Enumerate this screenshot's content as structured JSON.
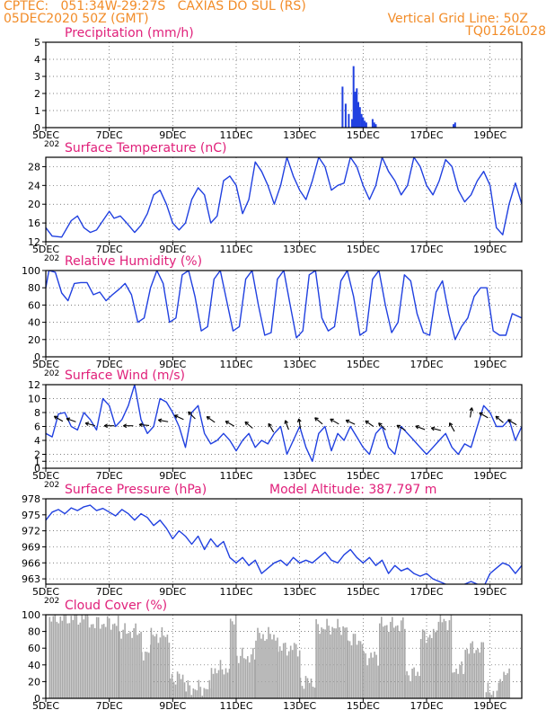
{
  "header": {
    "line1": "CPTEC:   051:34W-29:27S   CAXIAS DO SUL (RS)",
    "line2": "05DEC2020 50Z (GMT)",
    "grid_note": "Vertical Grid Line: 50Z",
    "code": "TQ0126L028"
  },
  "colors": {
    "header": "#f28c28",
    "title": "#e0207a",
    "series": "#2040e0",
    "bars": "#a8a8a8",
    "arrows": "#000000"
  },
  "x_ticks": [
    "5DEC",
    "7DEC",
    "9DEC",
    "11DEC",
    "13DEC",
    "15DEC",
    "17DEC",
    "19DEC"
  ],
  "x_tick_days": [
    5,
    7,
    9,
    11,
    13,
    15,
    17,
    19
  ],
  "x_range": [
    5,
    20
  ],
  "cut_label": "202",
  "chart_data": [
    {
      "type": "bar",
      "title": "Precipitation (mm/h)",
      "ylim": [
        0,
        5
      ],
      "yticks": [
        0,
        1,
        2,
        3,
        4,
        5
      ],
      "x": [
        14.35,
        14.45,
        14.55,
        14.65,
        14.7,
        14.75,
        14.8,
        14.85,
        14.9,
        14.95,
        15.0,
        15.05,
        15.1,
        15.3,
        15.35,
        15.4,
        17.85,
        17.9
      ],
      "values": [
        2.4,
        1.4,
        0.8,
        0.5,
        3.6,
        2.1,
        2.3,
        1.5,
        1.2,
        0.8,
        0.6,
        0.4,
        0.3,
        0.5,
        0.3,
        0.2,
        0.2,
        0.3
      ]
    },
    {
      "type": "line",
      "title": "Surface Temperature (nC)",
      "ylim": [
        12,
        30
      ],
      "yticks": [
        12,
        16,
        20,
        24,
        28
      ],
      "x": [
        5,
        5.2,
        5.5,
        5.8,
        6.0,
        6.2,
        6.4,
        6.6,
        6.8,
        7.0,
        7.15,
        7.35,
        7.55,
        7.8,
        8.0,
        8.2,
        8.4,
        8.6,
        8.8,
        9.0,
        9.2,
        9.4,
        9.6,
        9.8,
        10.0,
        10.2,
        10.4,
        10.6,
        10.8,
        11.0,
        11.2,
        11.4,
        11.6,
        11.8,
        12.0,
        12.2,
        12.4,
        12.6,
        12.8,
        13.0,
        13.2,
        13.4,
        13.6,
        13.8,
        14.0,
        14.2,
        14.4,
        14.6,
        14.8,
        15.0,
        15.2,
        15.4,
        15.6,
        15.8,
        16.0,
        16.2,
        16.4,
        16.6,
        16.8,
        17.0,
        17.2,
        17.4,
        17.6,
        17.8,
        18.0,
        18.2,
        18.4,
        18.6,
        18.8,
        19.0,
        19.2,
        19.4,
        19.6,
        19.8,
        20.0
      ],
      "values": [
        15,
        13.2,
        13,
        16.5,
        17.5,
        15,
        14,
        14.5,
        16.5,
        18.5,
        17,
        17.5,
        16,
        14,
        15.5,
        18,
        22,
        23,
        20,
        16,
        14.5,
        16,
        21,
        23.5,
        22,
        16,
        17.5,
        25,
        26,
        24,
        18,
        21,
        29,
        27,
        24,
        20,
        24,
        30,
        26,
        23,
        21,
        25,
        30,
        28,
        23,
        24,
        24.5,
        30,
        28,
        24,
        21,
        24,
        30,
        27,
        25,
        22,
        24,
        30,
        28,
        24,
        22,
        25,
        29.5,
        28,
        23,
        20.5,
        22,
        25,
        27,
        24,
        15,
        13.5,
        20,
        24.5,
        20
      ]
    },
    {
      "type": "line",
      "title": "Relative Humidity (%)",
      "ylim": [
        0,
        100
      ],
      "yticks": [
        0,
        20,
        40,
        60,
        80,
        100
      ],
      "x": [
        5,
        5.1,
        5.3,
        5.5,
        5.7,
        5.9,
        6.1,
        6.3,
        6.5,
        6.7,
        6.9,
        7.1,
        7.3,
        7.5,
        7.7,
        7.9,
        8.1,
        8.3,
        8.5,
        8.7,
        8.9,
        9.1,
        9.3,
        9.5,
        9.7,
        9.9,
        10.1,
        10.3,
        10.5,
        10.7,
        10.9,
        11.1,
        11.3,
        11.5,
        11.7,
        11.9,
        12.1,
        12.3,
        12.5,
        12.7,
        12.9,
        13.1,
        13.3,
        13.5,
        13.7,
        13.9,
        14.1,
        14.3,
        14.5,
        14.7,
        14.9,
        15.1,
        15.3,
        15.5,
        15.7,
        15.9,
        16.1,
        16.3,
        16.5,
        16.7,
        16.9,
        17.1,
        17.3,
        17.5,
        17.7,
        17.9,
        18.1,
        18.3,
        18.5,
        18.7,
        18.9,
        19.1,
        19.3,
        19.5,
        19.7,
        20.0
      ],
      "values": [
        80,
        100,
        98,
        74,
        65,
        85,
        86,
        86,
        72,
        75,
        65,
        72,
        78,
        85,
        72,
        40,
        45,
        80,
        100,
        85,
        40,
        45,
        95,
        100,
        70,
        30,
        35,
        90,
        100,
        65,
        30,
        35,
        90,
        100,
        60,
        25,
        28,
        90,
        100,
        60,
        22,
        30,
        95,
        100,
        45,
        30,
        35,
        88,
        100,
        70,
        25,
        30,
        90,
        100,
        60,
        28,
        40,
        95,
        88,
        50,
        28,
        25,
        75,
        88,
        50,
        20,
        35,
        45,
        70,
        80,
        80,
        30,
        25,
        25,
        50,
        45
      ]
    },
    {
      "type": "line",
      "title": "Surface Wind (m/s)",
      "ylim": [
        0,
        12
      ],
      "yticks": [
        0,
        1,
        2,
        4,
        6,
        8,
        10,
        12
      ],
      "x": [
        5,
        5.2,
        5.4,
        5.6,
        5.8,
        6.0,
        6.2,
        6.4,
        6.6,
        6.8,
        7.0,
        7.2,
        7.4,
        7.6,
        7.8,
        8.0,
        8.2,
        8.4,
        8.6,
        8.8,
        9.0,
        9.2,
        9.4,
        9.6,
        9.8,
        10.0,
        10.2,
        10.4,
        10.6,
        10.8,
        11.0,
        11.2,
        11.4,
        11.6,
        11.8,
        12.0,
        12.2,
        12.4,
        12.6,
        12.8,
        13.0,
        13.2,
        13.4,
        13.6,
        13.8,
        14.0,
        14.2,
        14.4,
        14.6,
        14.8,
        15.0,
        15.2,
        15.4,
        15.6,
        15.8,
        16.0,
        16.2,
        16.4,
        16.6,
        16.8,
        17.0,
        17.2,
        17.4,
        17.6,
        17.8,
        18.0,
        18.2,
        18.4,
        18.6,
        18.8,
        19.0,
        19.2,
        19.4,
        19.6,
        19.8,
        20.0
      ],
      "values": [
        5,
        4.5,
        7.8,
        8,
        6,
        5.5,
        8,
        7,
        5.5,
        10,
        9,
        6,
        7,
        9,
        12,
        7,
        5,
        6,
        10,
        9.5,
        8,
        6,
        3,
        8,
        9,
        5,
        3.5,
        4,
        5,
        4,
        2.5,
        4,
        5,
        3,
        4,
        3.5,
        5,
        6,
        2,
        4,
        6,
        3,
        1,
        5,
        6,
        2.5,
        5,
        4,
        6,
        4.5,
        3,
        2,
        5,
        6,
        3,
        2,
        6,
        5,
        4,
        3,
        2,
        3,
        4,
        5,
        3,
        2,
        3.5,
        3,
        6,
        9,
        8,
        6,
        6,
        7,
        4,
        6
      ],
      "arrows": [
        {
          "x": 5.4,
          "y": 7.1,
          "a": 150
        },
        {
          "x": 5.8,
          "y": 6.9,
          "a": 160
        },
        {
          "x": 6.4,
          "y": 6.3,
          "a": 165
        },
        {
          "x": 7.0,
          "y": 6.1,
          "a": 180
        },
        {
          "x": 7.6,
          "y": 6.1,
          "a": 180
        },
        {
          "x": 8.1,
          "y": 6.2,
          "a": 175
        },
        {
          "x": 8.7,
          "y": 6.8,
          "a": 170
        },
        {
          "x": 9.2,
          "y": 7.3,
          "a": 155
        },
        {
          "x": 9.6,
          "y": 7.6,
          "a": 135
        },
        {
          "x": 10.2,
          "y": 7.0,
          "a": 145
        },
        {
          "x": 10.8,
          "y": 6.4,
          "a": 150
        },
        {
          "x": 11.4,
          "y": 6.2,
          "a": 140
        },
        {
          "x": 12.1,
          "y": 5.8,
          "a": 120
        },
        {
          "x": 12.6,
          "y": 6.2,
          "a": 110
        },
        {
          "x": 13.0,
          "y": 6.4,
          "a": 100
        },
        {
          "x": 13.6,
          "y": 6.8,
          "a": 140
        },
        {
          "x": 14.1,
          "y": 6.7,
          "a": 150
        },
        {
          "x": 14.6,
          "y": 6.6,
          "a": 155
        },
        {
          "x": 15.2,
          "y": 6.4,
          "a": 145
        },
        {
          "x": 15.6,
          "y": 6.0,
          "a": 135
        },
        {
          "x": 16.2,
          "y": 5.8,
          "a": 150
        },
        {
          "x": 16.8,
          "y": 5.8,
          "a": 160
        },
        {
          "x": 17.3,
          "y": 5.6,
          "a": 165
        },
        {
          "x": 17.8,
          "y": 5.9,
          "a": 120
        },
        {
          "x": 18.4,
          "y": 8.0,
          "a": 80
        },
        {
          "x": 18.8,
          "y": 7.6,
          "a": 150
        },
        {
          "x": 19.3,
          "y": 7.0,
          "a": 140
        },
        {
          "x": 19.7,
          "y": 6.6,
          "a": 150
        }
      ]
    },
    {
      "type": "line",
      "title": "Surface Pressure (hPa)",
      "subtitle": "Model Altitude: 387.797 m",
      "ylim": [
        962,
        978
      ],
      "yticks": [
        963,
        966,
        969,
        972,
        975,
        978
      ],
      "x": [
        5,
        5.2,
        5.4,
        5.6,
        5.8,
        6.0,
        6.2,
        6.4,
        6.6,
        6.8,
        7.0,
        7.2,
        7.4,
        7.6,
        7.8,
        8.0,
        8.2,
        8.4,
        8.6,
        8.8,
        9.0,
        9.2,
        9.4,
        9.6,
        9.8,
        10.0,
        10.2,
        10.4,
        10.6,
        10.8,
        11.0,
        11.2,
        11.4,
        11.6,
        11.8,
        12.0,
        12.2,
        12.4,
        12.6,
        12.8,
        13.0,
        13.2,
        13.4,
        13.6,
        13.8,
        14.0,
        14.2,
        14.4,
        14.6,
        14.8,
        15.0,
        15.2,
        15.4,
        15.6,
        15.8,
        16.0,
        16.2,
        16.4,
        16.6,
        16.8,
        17.0,
        17.2,
        17.4,
        17.6,
        17.8,
        18.0,
        18.2,
        18.4,
        18.6,
        18.8,
        19.0,
        19.2,
        19.4,
        19.6,
        19.8,
        20.0
      ],
      "values": [
        974,
        975.5,
        976,
        975.2,
        976.3,
        975.8,
        976.5,
        976.8,
        975.8,
        976.2,
        975.5,
        974.8,
        976,
        975.2,
        974,
        975.2,
        974.5,
        973,
        974,
        972.5,
        970.5,
        972,
        971,
        969.5,
        971,
        968.5,
        970.5,
        969,
        970,
        967,
        966,
        967,
        965.5,
        966.5,
        964,
        965,
        966,
        966.5,
        965.5,
        967,
        966,
        966.5,
        966,
        967,
        968,
        966.5,
        966,
        967.5,
        968.5,
        967,
        966,
        967,
        965.5,
        966.5,
        964,
        965.5,
        964.5,
        965,
        964,
        963.5,
        964,
        963,
        962.5,
        962,
        961.5,
        961.5,
        962,
        962.5,
        962,
        961.5,
        964,
        965,
        966,
        965.5,
        964,
        965.5
      ]
    },
    {
      "type": "bar",
      "title": "Cloud Cover (%)",
      "ylim": [
        0,
        100
      ],
      "yticks": [
        0,
        20,
        40,
        60,
        80,
        100
      ],
      "segments": [
        {
          "start": 5.1,
          "end": 6.3,
          "level": 96
        },
        {
          "start": 6.3,
          "end": 7.3,
          "level": 90
        },
        {
          "start": 7.3,
          "end": 8.0,
          "level": 80
        },
        {
          "start": 8.0,
          "end": 8.3,
          "level": 55
        },
        {
          "start": 8.3,
          "end": 8.9,
          "level": 75
        },
        {
          "start": 8.9,
          "end": 9.4,
          "level": 25
        },
        {
          "start": 9.4,
          "end": 10.2,
          "level": 12
        },
        {
          "start": 10.2,
          "end": 10.8,
          "level": 35
        },
        {
          "start": 10.8,
          "end": 11.0,
          "level": 95
        },
        {
          "start": 11.0,
          "end": 11.6,
          "level": 50
        },
        {
          "start": 11.6,
          "end": 12.3,
          "level": 75
        },
        {
          "start": 12.3,
          "end": 13.0,
          "level": 60
        },
        {
          "start": 13.0,
          "end": 13.5,
          "level": 20
        },
        {
          "start": 13.5,
          "end": 14.5,
          "level": 85
        },
        {
          "start": 14.5,
          "end": 15.0,
          "level": 70
        },
        {
          "start": 15.0,
          "end": 15.5,
          "level": 50
        },
        {
          "start": 15.5,
          "end": 16.3,
          "level": 88
        },
        {
          "start": 16.3,
          "end": 16.8,
          "level": 30
        },
        {
          "start": 16.8,
          "end": 17.3,
          "level": 75
        },
        {
          "start": 17.3,
          "end": 17.8,
          "level": 92
        },
        {
          "start": 17.8,
          "end": 18.2,
          "level": 35
        },
        {
          "start": 18.2,
          "end": 18.8,
          "level": 60
        },
        {
          "start": 18.8,
          "end": 19.3,
          "level": 8
        },
        {
          "start": 19.3,
          "end": 19.6,
          "level": 28
        }
      ]
    }
  ]
}
